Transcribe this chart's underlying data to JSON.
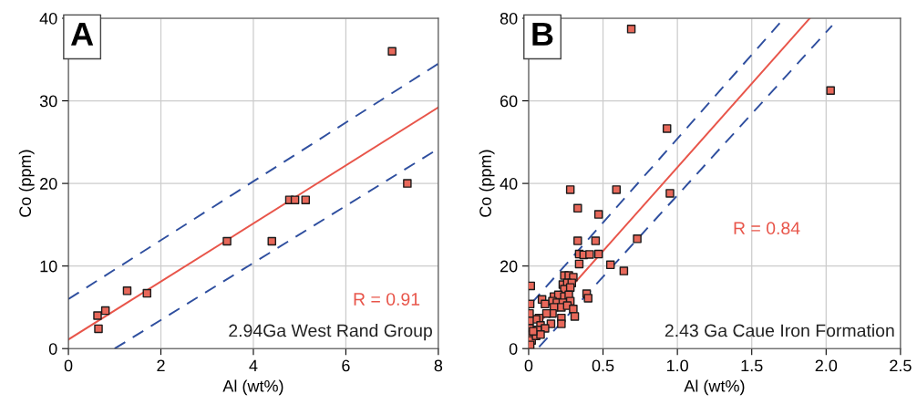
{
  "chart_data": [
    {
      "type": "scatter",
      "xlabel": "Al (wt%)",
      "ylabel": "Co (ppm)",
      "annotations": [
        "A",
        "R = 0.91",
        "2.94Ga West Rand Group"
      ],
      "xlim": [
        0,
        8
      ],
      "ylim": [
        0,
        40
      ],
      "xticks": [
        0,
        2,
        4,
        6,
        8
      ],
      "yticks": [
        0,
        10,
        20,
        30,
        40
      ],
      "grid": true,
      "marker": "square",
      "legend": false,
      "series": [
        {
          "color": "#e8685a",
          "x": [
            0.63,
            0.65,
            0.8,
            1.27,
            1.7,
            3.43,
            4.4,
            4.78,
            4.9,
            5.13,
            7.0,
            7.33
          ],
          "values": [
            4.0,
            2.4,
            4.6,
            7.0,
            6.7,
            13.0,
            13.0,
            18.0,
            18.0,
            18.0,
            36.0,
            20.0
          ]
        },
        {
          "type": "line",
          "color": "#e8554a",
          "marker": "none",
          "line_style": "solid",
          "x": [
            0,
            8
          ],
          "values": [
            1.1,
            29.2
          ]
        },
        {
          "type": "line",
          "color": "#2f4f9f",
          "marker": "none",
          "line_style": "dashed",
          "x": [
            0,
            8
          ],
          "values": [
            6.0,
            34.5
          ]
        },
        {
          "type": "line",
          "color": "#2f4f9f",
          "marker": "none",
          "line_style": "dashed",
          "x": [
            1.0,
            8
          ],
          "values": [
            0,
            24.2
          ]
        }
      ]
    },
    {
      "type": "scatter",
      "xlabel": "Al (wt%)",
      "ylabel": "Co (ppm)",
      "annotations": [
        "B",
        "R = 0.84",
        "2.43 Ga Caue Iron Formation"
      ],
      "xlim": [
        0,
        2.5
      ],
      "ylim": [
        0,
        80
      ],
      "xticks": [
        0,
        {
          "value": 0.5,
          "label": "0.5"
        },
        {
          "value": 1,
          "label": "1.0"
        },
        {
          "value": 1.5,
          "label": "1.5"
        },
        {
          "value": 2,
          "label": "2.0"
        },
        {
          "value": 2.5,
          "label": "2.5"
        }
      ],
      "yticks": [
        0,
        20,
        40,
        60,
        80
      ],
      "grid": true,
      "marker": "square",
      "legend": false,
      "series": [
        {
          "color": "#e8685a",
          "x": [
            0.69,
            2.03,
            0.93,
            0.28,
            0.59,
            0.95,
            0.33,
            0.47,
            0.73,
            0.33,
            0.45,
            0.34,
            0.37,
            0.41,
            0.47,
            0.34,
            0.55,
            0.64,
            0.24,
            0.27,
            0.3,
            0.23,
            0.26,
            0.29,
            0.24,
            0.28,
            0.17,
            0.2,
            0.24,
            0.27,
            0.16,
            0.19,
            0.23,
            0.28,
            0.17,
            0.22,
            0.26,
            0.09,
            0.11,
            0.3,
            0.31,
            0.22,
            0.22,
            0.16,
            0.12,
            0.07,
            0.05,
            0.08,
            0.15,
            0.11,
            0.06,
            0.01,
            0.006,
            0.006,
            0.006,
            0.01,
            0.02,
            0.01,
            0.05,
            0.08,
            0.03,
            0.39,
            0.4,
            0.014
          ],
          "values": [
            77.4,
            62.5,
            53.3,
            38.5,
            38.5,
            37.6,
            34.0,
            32.5,
            26.6,
            26.1,
            26.1,
            22.9,
            22.7,
            22.8,
            22.9,
            20.5,
            20.3,
            18.8,
            17.7,
            17.7,
            17.3,
            15.5,
            15.9,
            15.9,
            14.4,
            14.8,
            12.6,
            13.0,
            12.6,
            13.0,
            11.5,
            11.1,
            11.1,
            11.5,
            10.0,
            10.0,
            10.4,
            11.9,
            10.8,
            9.6,
            7.8,
            7.4,
            6.0,
            8.5,
            8.5,
            7.4,
            7.1,
            5.6,
            6.0,
            4.9,
            4.5,
            10.8,
            8.5,
            6.7,
            4.9,
            3.4,
            2.0,
            0.9,
            3.1,
            3.4,
            4.2,
            13.3,
            12.2,
            15.2
          ]
        },
        {
          "type": "line",
          "color": "#e8554a",
          "marker": "none",
          "line_style": "solid",
          "x": [
            0.09,
            1.89
          ],
          "values": [
            7.0,
            80
          ]
        },
        {
          "type": "line",
          "color": "#2f4f9f",
          "marker": "none",
          "line_style": "dashed",
          "x": [
            0.02,
            1.69
          ],
          "values": [
            11.0,
            78.9
          ]
        },
        {
          "type": "line",
          "color": "#2f4f9f",
          "marker": "none",
          "line_style": "dashed",
          "x": [
            0.07,
            2.04
          ],
          "values": [
            0.4,
            78.2
          ]
        }
      ]
    }
  ]
}
